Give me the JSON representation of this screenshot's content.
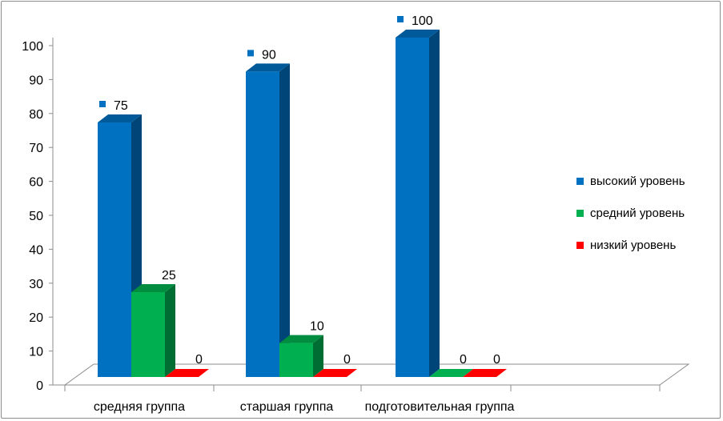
{
  "chart_data": {
    "type": "bar",
    "categories": [
      "средняя группа",
      "старшая группа",
      "подготовительная группа"
    ],
    "series": [
      {
        "name": "высокий уровень",
        "values": [
          75,
          90,
          100
        ],
        "color": "#0070c0"
      },
      {
        "name": "средний уровень",
        "values": [
          25,
          10,
          0
        ],
        "color": "#00b050"
      },
      {
        "name": "низкий уровень",
        "values": [
          0,
          0,
          0
        ],
        "color": "#ff0000"
      }
    ],
    "title": "",
    "xlabel": "",
    "ylabel": "",
    "ylim": [
      0,
      100
    ],
    "yticks": [
      0,
      10,
      20,
      30,
      40,
      50,
      60,
      70,
      80,
      90,
      100
    ],
    "legend_position": "right",
    "grid": false,
    "style": "3d-clustered"
  }
}
